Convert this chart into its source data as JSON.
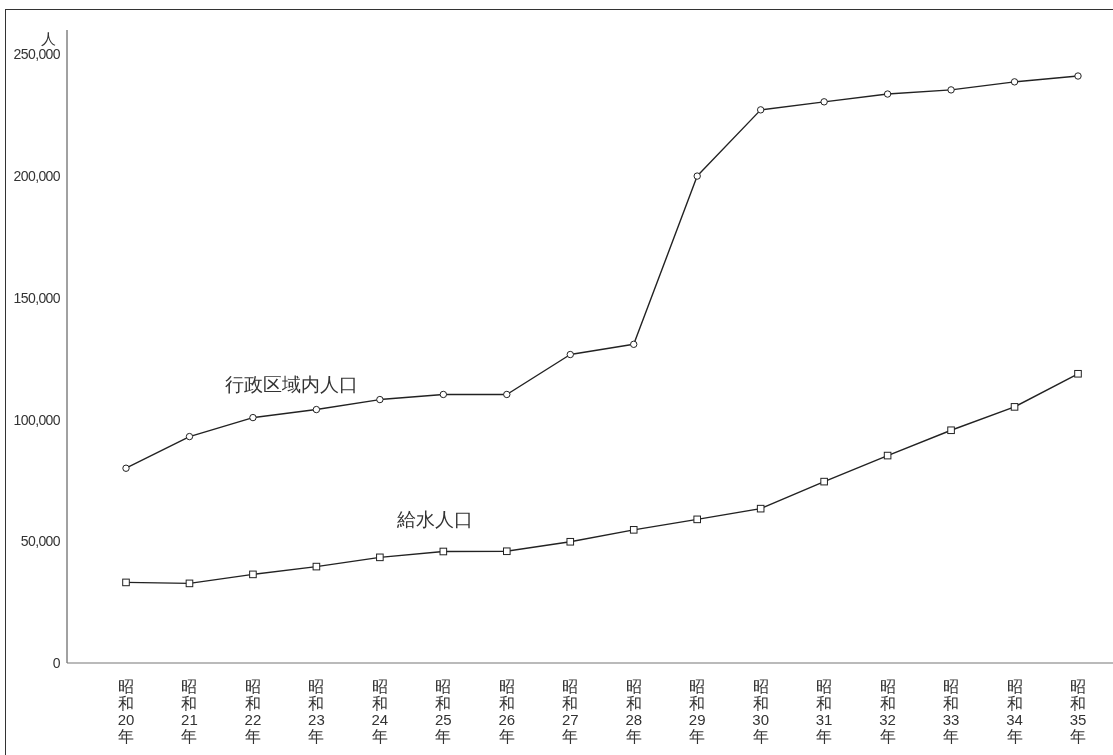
{
  "chart_data": {
    "type": "line",
    "ylabel": "人",
    "categories": [
      "昭和20年",
      "昭和21年",
      "昭和22年",
      "昭和23年",
      "昭和24年",
      "昭和25年",
      "昭和26年",
      "昭和27年",
      "昭和28年",
      "昭和29年",
      "昭和30年",
      "昭和31年",
      "昭和32年",
      "昭和33年",
      "昭和34年",
      "昭和35年"
    ],
    "series": [
      {
        "name": "行政区域内人口",
        "color": "#222222",
        "marker": "circle",
        "values": [
          80000,
          93000,
          100800,
          104100,
          108200,
          110300,
          110300,
          126700,
          130900,
          200000,
          227200,
          230500,
          233700,
          235400,
          238700,
          241100
        ]
      },
      {
        "name": "給水人口",
        "color": "#222222",
        "marker": "square",
        "values": [
          33100,
          32700,
          36400,
          39600,
          43400,
          45800,
          45900,
          49800,
          54700,
          59000,
          63400,
          74500,
          85200,
          95600,
          105200,
          118800
        ]
      }
    ],
    "ylim": [
      0,
      260000
    ],
    "yticks": [
      {
        "value": 0,
        "label": "0"
      },
      {
        "value": 50000,
        "label": "50,000"
      },
      {
        "value": 100000,
        "label": "100,000"
      },
      {
        "value": 150000,
        "label": "150,000"
      },
      {
        "value": 200000,
        "label": "200,000"
      },
      {
        "value": 250000,
        "label": "250,000"
      }
    ],
    "grid": false,
    "legend": false,
    "line_style": "solid"
  }
}
